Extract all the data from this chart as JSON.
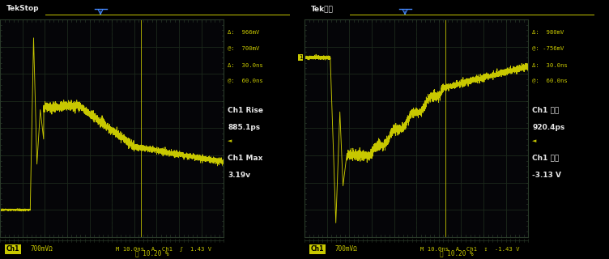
{
  "bg_color": "#0a0a0a",
  "screen_bg": "#050508",
  "grid_color": "#1c2a1c",
  "grid_border": "#2a3a2a",
  "wave_color": "#c8c800",
  "text_white": "#e8e8e8",
  "text_yellow": "#c8c800",
  "text_cyan": "#00c8c8",
  "text_blue": "#4488ff",
  "left": {
    "title": "TekStop",
    "meas": [
      "Δ:  966mV",
      "@:  700mV",
      "Δ:  30.0ns",
      "@:  60.0ns"
    ],
    "label1": "Ch1 Rise",
    "val1": "885.1ps",
    "label2": "Ch1 Max",
    "val2": "3.19v",
    "bot_ch": "Ch1",
    "bot_scale": "700mVΩ",
    "bot_mid": "M 10.0ns  A  Ch1  ʃ  1.43 V"
  },
  "right": {
    "title": "Tek停止",
    "meas": [
      "Δ:  980mV",
      "@: -756mV",
      "Δ:  30.0ns",
      "@:  60.0ns"
    ],
    "label1": "Ch1 下降",
    "val1": "920.4ps",
    "label2": "Ch1 最小",
    "val2": "-3.13 V",
    "bot_ch": "Ch1",
    "bot_scale": "700mVΩ",
    "bot_mid": "M 10.0ns  A  Ch1  ↧  -1.43 V"
  },
  "footer": "10.20 %",
  "nx": 10,
  "ny": 8
}
